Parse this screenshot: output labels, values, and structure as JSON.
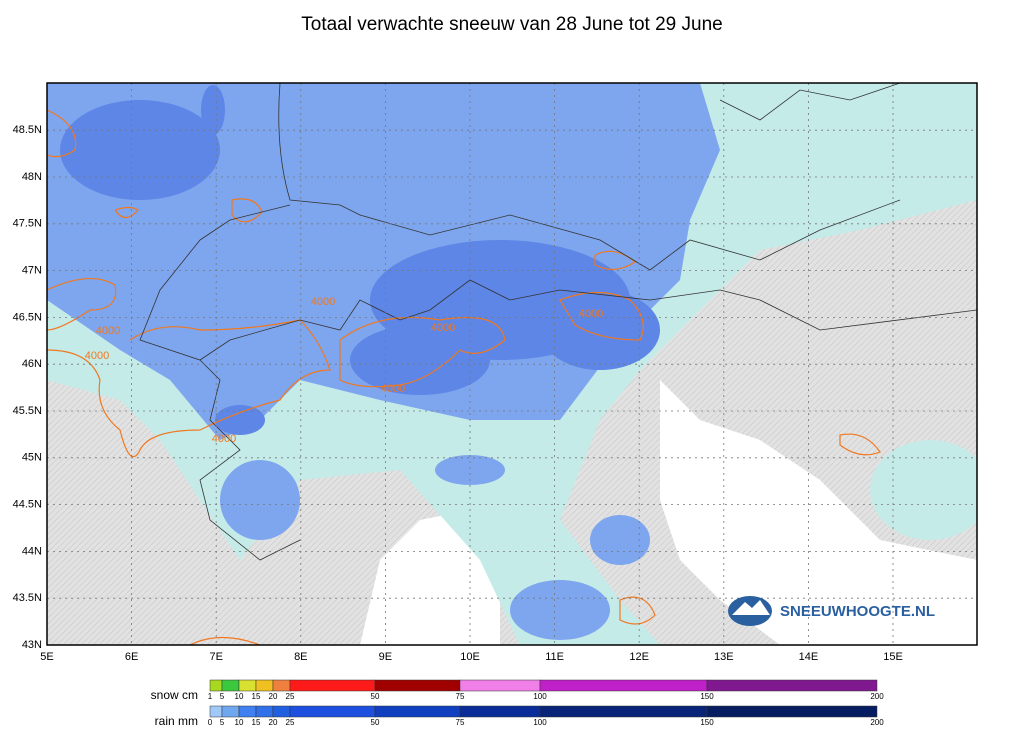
{
  "title": "Totaal verwachte sneeuw van 28 June tot 29 June",
  "map": {
    "lon_labels": [
      "5E",
      "6E",
      "7E",
      "8E",
      "9E",
      "10E",
      "11E",
      "12E",
      "13E",
      "14E",
      "15E"
    ],
    "lat_labels": [
      "48.5N",
      "48N",
      "47.5N",
      "47N",
      "46.5N",
      "46N",
      "45.5N",
      "45N",
      "44.5N",
      "44N",
      "43.5N",
      "43N"
    ],
    "contour_labels": [
      "4000",
      "4000",
      "4000",
      "4000",
      "4000",
      "4000",
      "4000"
    ],
    "logo": "SNEEUWHOOGTE.NL"
  },
  "legend": {
    "snow_title": "snow cm",
    "snow_labels": [
      "1",
      "5",
      "10",
      "15",
      "20",
      "25",
      "50",
      "75",
      "100",
      "150",
      "200"
    ],
    "rain_title": "rain mm",
    "rain_labels": [
      "0",
      "5",
      "10",
      "15",
      "20",
      "25",
      "50",
      "75",
      "100",
      "150",
      "200"
    ]
  }
}
